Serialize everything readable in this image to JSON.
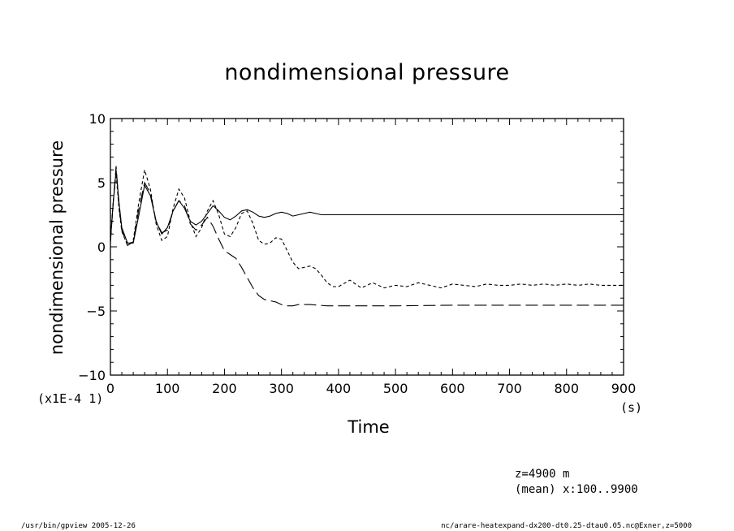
{
  "chart_data": {
    "type": "line",
    "title": "nondimensional pressure",
    "xlabel": "Time",
    "ylabel": "nondimensional pressure",
    "x_units": "(s)",
    "y_scale_label": "(x1E-4 1)",
    "xlim": [
      0,
      900
    ],
    "ylim": [
      -10,
      10
    ],
    "x_ticks": [
      0,
      100,
      200,
      300,
      400,
      500,
      600,
      700,
      800,
      900
    ],
    "x_tick_labels": [
      "0",
      "100",
      "200",
      "300",
      "400",
      "500",
      "600",
      "700",
      "800",
      "900"
    ],
    "y_ticks": [
      -10,
      -5,
      0,
      5,
      10
    ],
    "y_tick_labels": [
      "−10",
      "−5",
      "0",
      "5",
      "10"
    ],
    "grid": false,
    "series": [
      {
        "style": "solid",
        "x": [
          0,
          5,
          10,
          15,
          20,
          30,
          40,
          50,
          60,
          70,
          80,
          90,
          100,
          110,
          120,
          130,
          140,
          150,
          160,
          170,
          180,
          190,
          200,
          210,
          220,
          230,
          240,
          250,
          260,
          270,
          280,
          290,
          300,
          310,
          320,
          330,
          340,
          350,
          360,
          370,
          380,
          400,
          450,
          500,
          600,
          700,
          800,
          900
        ],
        "y": [
          0.5,
          3.5,
          6.0,
          3.5,
          1.5,
          0.3,
          0.3,
          2.5,
          4.8,
          4.0,
          2.0,
          1.0,
          1.5,
          2.8,
          3.6,
          3.0,
          2.0,
          1.7,
          2.0,
          2.6,
          3.2,
          2.8,
          2.3,
          2.1,
          2.4,
          2.8,
          2.9,
          2.7,
          2.4,
          2.3,
          2.4,
          2.6,
          2.7,
          2.6,
          2.4,
          2.5,
          2.6,
          2.7,
          2.6,
          2.5,
          2.5,
          2.5,
          2.5,
          2.5,
          2.5,
          2.5,
          2.5,
          2.5
        ]
      },
      {
        "style": "dashed",
        "x": [
          0,
          5,
          10,
          15,
          20,
          30,
          40,
          50,
          60,
          70,
          80,
          90,
          100,
          110,
          120,
          130,
          140,
          150,
          160,
          170,
          180,
          190,
          200,
          210,
          220,
          230,
          240,
          250,
          260,
          270,
          280,
          290,
          300,
          310,
          320,
          330,
          340,
          350,
          360,
          370,
          380,
          390,
          400,
          420,
          440,
          460,
          480,
          500,
          520,
          540,
          560,
          580,
          600,
          620,
          640,
          660,
          680,
          700,
          720,
          740,
          760,
          780,
          800,
          820,
          840,
          860,
          880,
          900
        ],
        "y": [
          0.5,
          3.5,
          5.7,
          3.0,
          1.2,
          0.1,
          0.5,
          3.5,
          6.0,
          4.5,
          1.8,
          0.5,
          0.8,
          3.0,
          4.5,
          3.8,
          2.0,
          0.8,
          1.5,
          2.8,
          3.6,
          2.5,
          1.0,
          0.8,
          1.5,
          2.6,
          2.8,
          1.8,
          0.5,
          0.2,
          0.3,
          0.7,
          0.6,
          -0.3,
          -1.2,
          -1.7,
          -1.6,
          -1.5,
          -1.7,
          -2.2,
          -2.8,
          -3.1,
          -3.1,
          -2.6,
          -3.2,
          -2.8,
          -3.2,
          -3.0,
          -3.1,
          -2.8,
          -3.0,
          -3.2,
          -2.9,
          -3.0,
          -3.1,
          -2.9,
          -3.0,
          -3.0,
          -2.9,
          -3.0,
          -2.9,
          -3.0,
          -2.9,
          -3.0,
          -2.9,
          -3.0,
          -3.0,
          -3.0
        ]
      },
      {
        "style": "long-dashed",
        "x": [
          0,
          5,
          10,
          15,
          20,
          30,
          40,
          50,
          60,
          70,
          80,
          90,
          100,
          110,
          120,
          130,
          140,
          150,
          160,
          170,
          180,
          190,
          200,
          210,
          220,
          230,
          240,
          250,
          260,
          270,
          280,
          290,
          300,
          310,
          320,
          330,
          340,
          350,
          380,
          400,
          450,
          500,
          600,
          700,
          800,
          900
        ],
        "y": [
          0.3,
          3.5,
          6.3,
          3.2,
          1.3,
          0.1,
          0.4,
          3.0,
          5.0,
          4.2,
          2.0,
          1.1,
          1.3,
          2.8,
          3.6,
          3.2,
          1.8,
          1.3,
          1.7,
          2.3,
          1.6,
          0.6,
          -0.3,
          -0.6,
          -0.9,
          -1.6,
          -2.4,
          -3.2,
          -3.8,
          -4.1,
          -4.2,
          -4.3,
          -4.5,
          -4.6,
          -4.6,
          -4.5,
          -4.5,
          -4.5,
          -4.6,
          -4.6,
          -4.6,
          -4.6,
          -4.55,
          -4.55,
          -4.55,
          -4.55
        ]
      }
    ]
  },
  "annotations": {
    "line1": "z=4900 m",
    "line2": "(mean) x:100..9900"
  },
  "footer": {
    "left": "/usr/bin/gpview  2005-12-26",
    "right": "nc/arare-heatexpand-dx200-dt0.25-dtau0.05.nc@Exner,z=5000"
  }
}
